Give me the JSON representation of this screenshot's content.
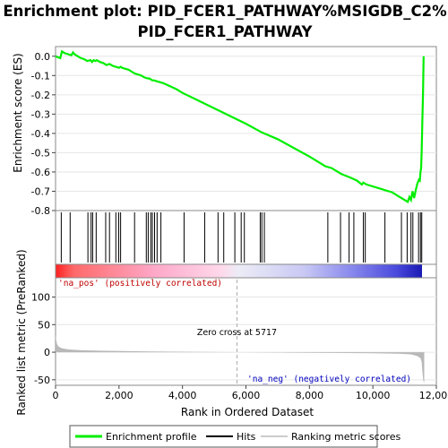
{
  "chart_data": [
    {
      "type": "line",
      "panel": "enrichment",
      "title_lines": [
        "Enrichment plot: PID_FCER1_PATHWAY%MSIGDB_C2%",
        "PID_FCER1_PATHWAY"
      ],
      "ylabel": "Enrichment score (ES)",
      "ylim": [
        -0.8,
        0.05
      ],
      "yticks": [
        0.0,
        -0.1,
        -0.2,
        -0.3,
        -0.4,
        -0.5,
        -0.6,
        -0.7,
        -0.8
      ],
      "ytick_labels": [
        "0.0",
        "-0.1",
        "-0.2",
        "-0.3",
        "-0.4",
        "-0.5",
        "-0.6",
        "-0.7",
        "-0.8"
      ],
      "xlim": [
        0,
        12000
      ],
      "line_color": "#00ee00",
      "series": [
        {
          "name": "Enrichment profile",
          "x": [
            0,
            150,
            200,
            250,
            300,
            400,
            500,
            550,
            600,
            700,
            800,
            900,
            1000,
            1100,
            1150,
            1200,
            1250,
            1300,
            1400,
            1500,
            1600,
            1700,
            1800,
            1900,
            2000,
            2050,
            2100,
            2200,
            2300,
            2400,
            2500,
            2600,
            2700,
            2800,
            2900,
            2950,
            3000,
            3050,
            3100,
            3200,
            3300,
            3400,
            3600,
            3800,
            4000,
            4500,
            5000,
            5500,
            6000,
            6500,
            7000,
            7500,
            8000,
            8500,
            8700,
            9000,
            9300,
            9500,
            9650,
            9700,
            9800,
            9900,
            10000,
            10300,
            10400,
            10500,
            10600,
            10700,
            10800,
            10900,
            11000,
            11100,
            11150,
            11200,
            11250,
            11300,
            11350,
            11400,
            11450,
            11480,
            11500,
            11520,
            11540,
            11560,
            11580,
            11600
          ],
          "y": [
            0.0,
            -0.01,
            0.025,
            0.02,
            0.015,
            0.01,
            0.005,
            0.02,
            0.01,
            0.0,
            -0.01,
            -0.015,
            -0.025,
            -0.02,
            -0.03,
            -0.02,
            -0.025,
            -0.02,
            -0.03,
            -0.035,
            -0.045,
            -0.04,
            -0.05,
            -0.055,
            -0.06,
            -0.055,
            -0.06,
            -0.065,
            -0.07,
            -0.08,
            -0.09,
            -0.095,
            -0.1,
            -0.11,
            -0.115,
            -0.115,
            -0.12,
            -0.125,
            -0.125,
            -0.13,
            -0.135,
            -0.14,
            -0.155,
            -0.17,
            -0.19,
            -0.23,
            -0.27,
            -0.31,
            -0.35,
            -0.395,
            -0.43,
            -0.475,
            -0.52,
            -0.57,
            -0.58,
            -0.61,
            -0.63,
            -0.645,
            -0.665,
            -0.655,
            -0.665,
            -0.67,
            -0.675,
            -0.69,
            -0.695,
            -0.7,
            -0.705,
            -0.715,
            -0.725,
            -0.735,
            -0.745,
            -0.755,
            -0.73,
            -0.745,
            -0.7,
            -0.735,
            -0.695,
            -0.66,
            -0.64,
            -0.645,
            -0.6,
            -0.58,
            -0.48,
            -0.33,
            -0.2,
            0.0
          ]
        }
      ]
    },
    {
      "type": "scatter",
      "panel": "hits",
      "legend_entry": "Hits",
      "x": [
        180,
        460,
        1020,
        1120,
        1170,
        1280,
        1580,
        1700,
        1900,
        1990,
        2050,
        2490,
        2860,
        2920,
        3000,
        3050,
        3120,
        3200,
        3320,
        4050,
        4700,
        5120,
        5300,
        5650,
        5850,
        5950,
        6450,
        6500,
        6580,
        8580,
        8980,
        9250,
        9400,
        9700,
        9760,
        10380,
        10900,
        11080,
        11200,
        11260,
        11440,
        11500,
        11540
      ]
    },
    {
      "type": "heatmap",
      "panel": "rank-bar",
      "xlim": [
        0,
        12000
      ],
      "stops": [
        {
          "pos": 0.0,
          "color": "#ff2020"
        },
        {
          "pos": 0.05,
          "color": "#ff6a6a"
        },
        {
          "pos": 0.27,
          "color": "#ffa8c8"
        },
        {
          "pos": 0.45,
          "color": "#ffd8ea"
        },
        {
          "pos": 0.5,
          "color": "#ececf6"
        },
        {
          "pos": 0.68,
          "color": "#c8c8f4"
        },
        {
          "pos": 0.8,
          "color": "#8c8cee"
        },
        {
          "pos": 0.93,
          "color": "#4a4adc"
        },
        {
          "pos": 1.0,
          "color": "#1a1ab4"
        }
      ]
    },
    {
      "type": "area",
      "panel": "ranked-metric",
      "ylabel": "Ranked list metric (PreRanked)",
      "xlabel": "Rank in Ordered Dataset",
      "ylim": [
        -60,
        135
      ],
      "yticks": [
        100,
        50,
        0,
        -50
      ],
      "ytick_labels": [
        "100",
        "50",
        "0",
        "-50"
      ],
      "xlim": [
        0,
        12000
      ],
      "xticks": [
        0,
        2000,
        4000,
        6000,
        8000,
        10000,
        12000
      ],
      "xtick_labels": [
        "0",
        "2,000",
        "4,000",
        "6,000",
        "8,000",
        "10,000",
        "12,000"
      ],
      "fill_color": "#b8b8b8",
      "x": [
        0,
        20,
        50,
        100,
        200,
        400,
        800,
        1500,
        3000,
        5717,
        8000,
        10000,
        10800,
        11200,
        11400,
        11500,
        11540,
        11560,
        11590,
        11620
      ],
      "y": [
        32,
        22,
        14,
        10,
        7,
        5,
        3.5,
        2.5,
        1.5,
        0,
        -1,
        -1.8,
        -2.8,
        -4,
        -7,
        -11,
        -18,
        -35,
        -52,
        -55
      ],
      "zero_cross": 5717,
      "annotations": {
        "pos_label": "'na_pos' (positively correlated)",
        "neg_label": "'na_neg' (negatively correlated)",
        "zero_cross_label": "Zero cross at 5717"
      }
    }
  ],
  "legend": {
    "items": [
      {
        "label": "Enrichment profile",
        "color": "#00ee00"
      },
      {
        "label": "Hits",
        "color": "#000000"
      },
      {
        "label": "Ranking metric scores",
        "color": "#cccccc"
      }
    ]
  }
}
